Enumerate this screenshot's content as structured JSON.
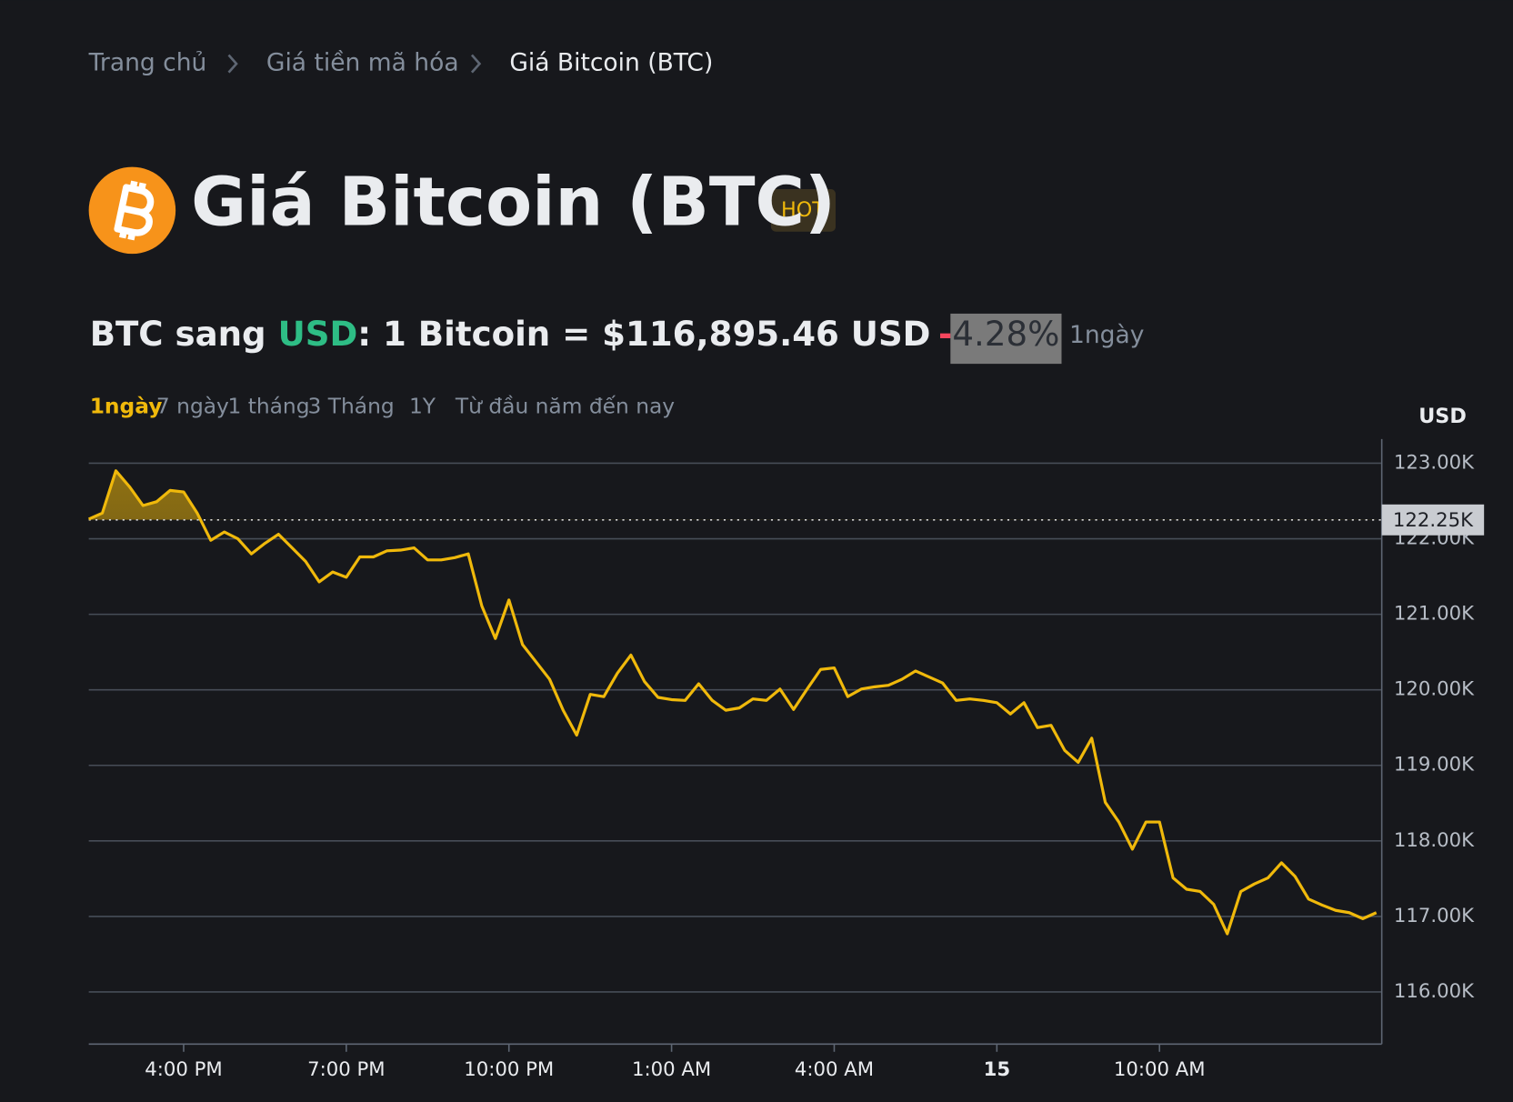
{
  "breadcrumb": [
    "Trang chủ",
    "Giá tiền mã hóa",
    "Giá Bitcoin (BTC)"
  ],
  "title": "Giá Bitcoin (BTC)",
  "badge": "HOT",
  "price": {
    "pair_from": "BTC sang ",
    "currency": "USD",
    "rate": ": 1 Bitcoin = $116,895.46 USD",
    "change_sign": "-",
    "change": "4.28%",
    "period": "1ngày"
  },
  "ranges": [
    "1ngày",
    "7 ngày",
    "1 tháng",
    "3 Tháng",
    "1Y",
    "Từ đầu năm đến nay"
  ],
  "active_range": 0,
  "chart_data": {
    "type": "line",
    "y_axis_label": "USD",
    "color": "#f0b90b",
    "x": [
      14.25,
      14.5,
      14.75,
      15,
      15.25,
      15.5,
      15.75,
      16,
      16.25,
      16.5,
      16.75,
      17,
      17.25,
      17.5,
      17.75,
      18,
      18.25,
      18.5,
      18.75,
      19,
      19.25,
      19.5,
      19.75,
      20,
      20.25,
      20.5,
      20.75,
      21,
      21.25,
      21.5,
      21.75,
      22,
      22.25,
      22.5,
      22.75,
      23,
      23.25,
      23.5,
      23.75,
      24,
      24.25,
      24.5,
      24.75,
      25,
      25.25,
      25.5,
      25.75,
      26,
      26.25,
      26.5,
      26.75,
      27,
      27.25,
      27.5,
      27.75,
      28,
      28.25,
      28.5,
      28.75,
      29,
      29.25,
      29.5,
      29.75,
      30,
      30.25,
      30.5,
      30.75,
      31,
      31.25,
      31.5,
      31.75,
      32,
      32.25,
      32.5,
      32.75,
      33,
      33.25,
      33.5,
      33.75,
      34,
      34.25,
      34.5,
      34.75,
      35,
      35.25,
      35.5,
      35.75,
      36,
      36.25,
      36.5,
      36.75,
      37,
      37.25,
      37.5,
      37.75,
      38
    ],
    "values": [
      122260,
      122340,
      122900,
      122690,
      122440,
      122490,
      122640,
      122620,
      122340,
      121980,
      122090,
      122000,
      121800,
      121940,
      122060,
      121880,
      121700,
      121430,
      121560,
      121490,
      121760,
      121760,
      121840,
      121850,
      121880,
      121720,
      121720,
      121750,
      121800,
      121110,
      120680,
      121190,
      120600,
      120370,
      120140,
      119730,
      119400,
      119940,
      119910,
      120220,
      120460,
      120110,
      119900,
      119870,
      119860,
      120080,
      119860,
      119730,
      119760,
      119880,
      119860,
      120010,
      119740,
      120010,
      120270,
      120290,
      119910,
      120010,
      120040,
      120060,
      120140,
      120250,
      120170,
      120090,
      119860,
      119880,
      119860,
      119830,
      119680,
      119830,
      119500,
      119530,
      119200,
      119040,
      119360,
      118510,
      118250,
      117890,
      118250,
      118250,
      117510,
      117360,
      117330,
      117160,
      116770,
      117330,
      117430,
      117510,
      117710,
      117530,
      117230,
      117150,
      117080,
      117050,
      116970,
      117050
    ],
    "xlim": [
      14.25,
      38.1
    ],
    "xticks": [
      {
        "value": 16,
        "label": "4:00 PM"
      },
      {
        "value": 19,
        "label": "7:00 PM"
      },
      {
        "value": 22,
        "label": "10:00 PM"
      },
      {
        "value": 25,
        "label": "1:00 AM"
      },
      {
        "value": 28,
        "label": "4:00 AM"
      },
      {
        "value": 31,
        "label": "15"
      },
      {
        "value": 34,
        "label": "10:00 AM"
      }
    ],
    "ylim": [
      115310,
      123320
    ],
    "yticks": [
      {
        "value": 116000,
        "label": "116.00K"
      },
      {
        "value": 117000,
        "label": "117.00K"
      },
      {
        "value": 118000,
        "label": "118.00K"
      },
      {
        "value": 119000,
        "label": "119.00K"
      },
      {
        "value": 120000,
        "label": "120.00K"
      },
      {
        "value": 121000,
        "label": "121.00K"
      },
      {
        "value": 122000,
        "label": "122.00K"
      },
      {
        "value": 123000,
        "label": "123.00K"
      }
    ],
    "grid": true,
    "reference": {
      "value": 122250,
      "label": "122.25K"
    }
  }
}
